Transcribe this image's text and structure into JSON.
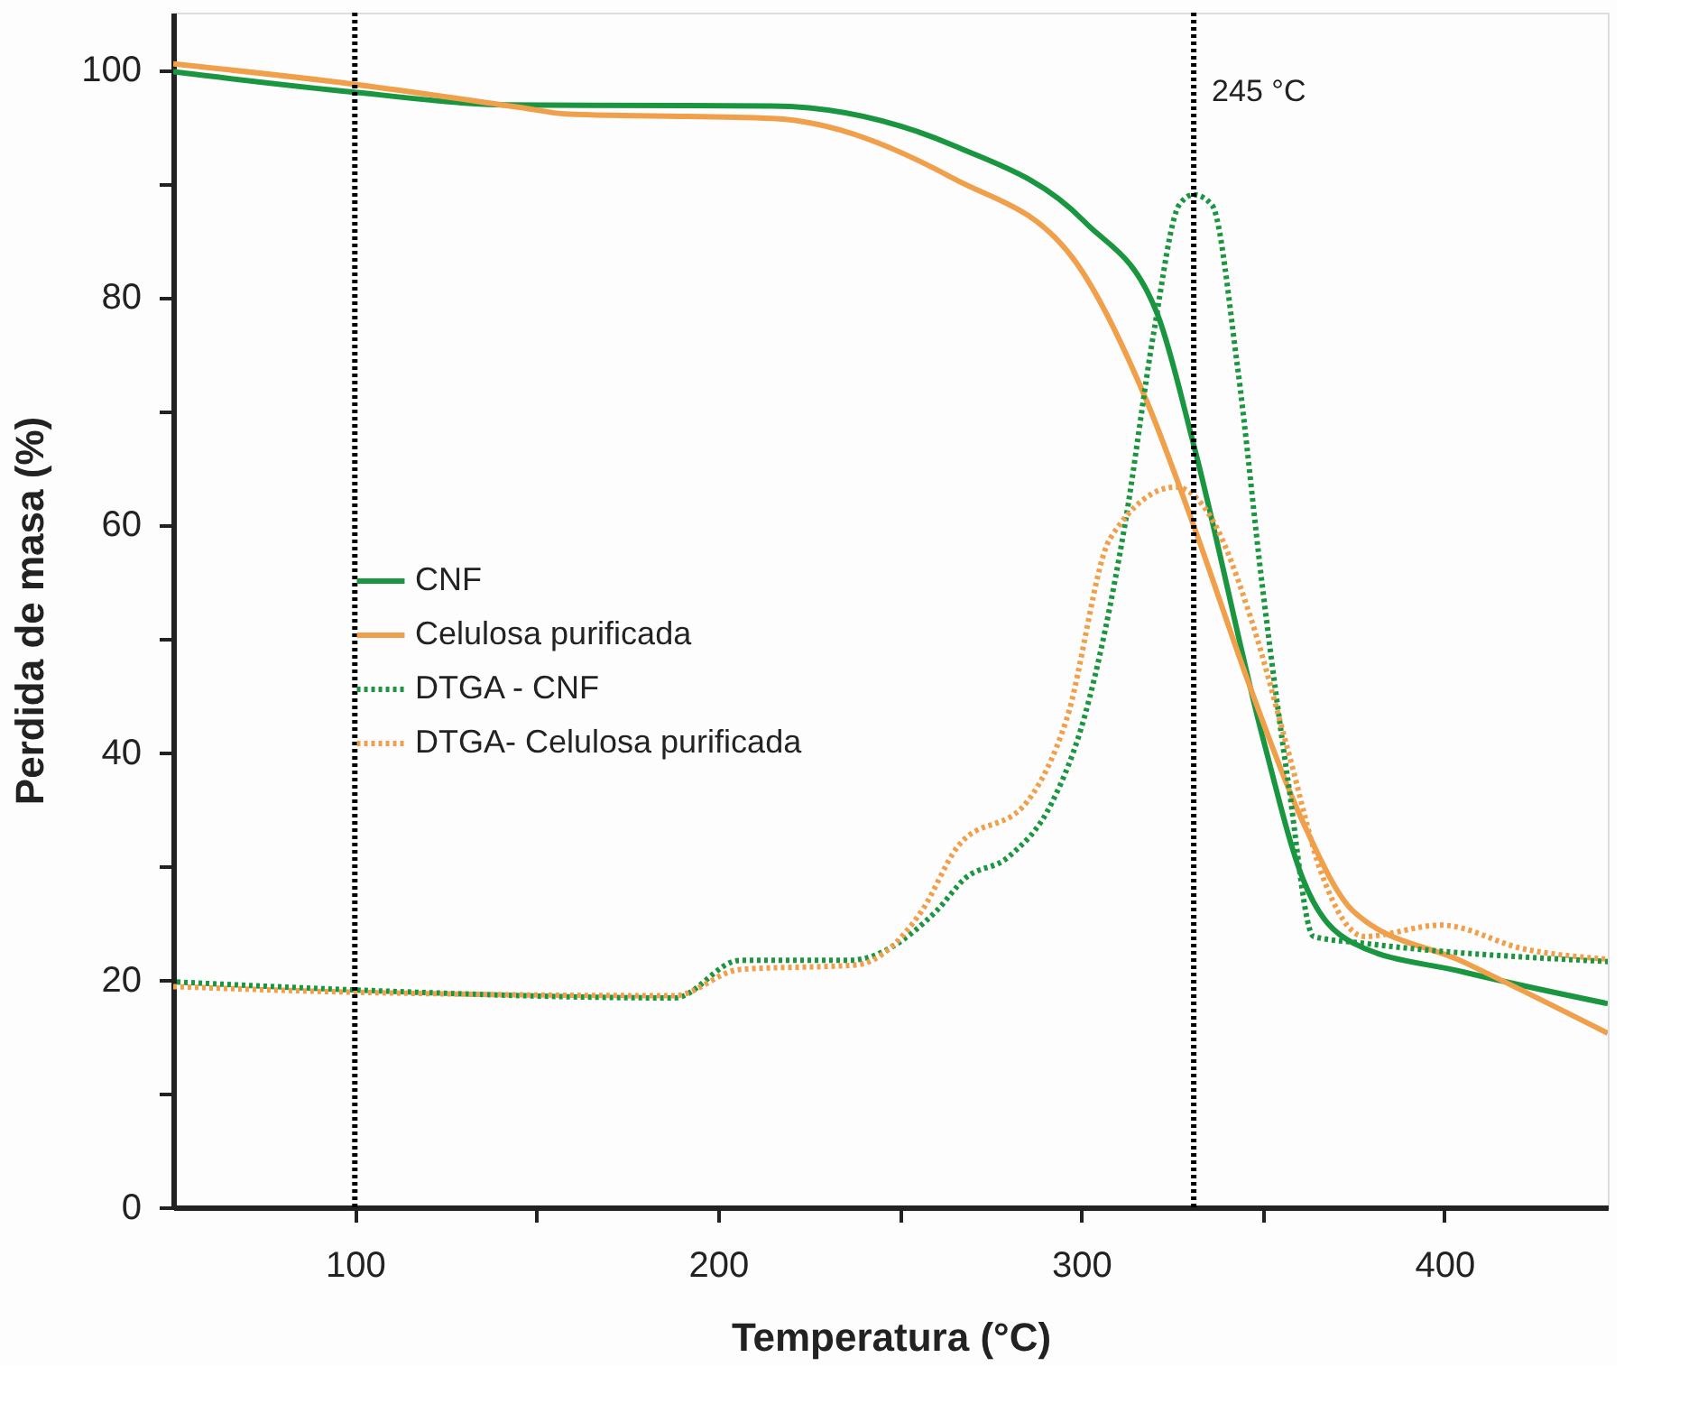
{
  "chart_data": {
    "type": "line",
    "xlabel": "Temperatura (°C)",
    "ylabel": "Perdida de masa (%)",
    "xlim": [
      50,
      445
    ],
    "ylim": [
      0,
      105
    ],
    "xticks": [
      100,
      {
        "value": 150,
        "label": null
      },
      200,
      {
        "value": 250,
        "label": null
      },
      300,
      {
        "value": 350,
        "label": null
      },
      400
    ],
    "yticks": [
      0,
      {
        "value": 10,
        "label": null
      },
      20,
      {
        "value": 30,
        "label": null
      },
      40,
      {
        "value": 50,
        "label": null
      },
      60,
      {
        "value": 70,
        "label": null
      },
      80,
      {
        "value": 90,
        "label": null
      },
      100
    ],
    "grid": false,
    "legend": "left",
    "series": [
      {
        "name": "CNF",
        "color": "#1a9641",
        "line_style": "solid",
        "x": [
          50,
          100,
          141,
          215,
          265,
          301,
          321,
          331,
          350,
          361,
          375,
          405,
          445
        ],
        "values": [
          99.8,
          98,
          96.9,
          96.8,
          93.3,
          86.6,
          78.5,
          67,
          41.3,
          28.9,
          23.2,
          20.7,
          17.9
        ]
      },
      {
        "name": "Celulosa purificada",
        "color": "#f0a04b",
        "line_style": "solid",
        "x": [
          50,
          100,
          147,
          158,
          215,
          265,
          298,
          318,
          331,
          347,
          361,
          375,
          405,
          445
        ],
        "values": [
          100.5,
          98.7,
          96.6,
          96.1,
          95.7,
          90.4,
          83.3,
          70.9,
          59.9,
          45.3,
          33.9,
          26,
          21.6,
          15.3
        ]
      },
      {
        "name": "DTGA - CNF",
        "color": "#1a9641",
        "line_style": "dotted",
        "x": [
          51,
          100,
          188,
          206,
          218,
          236,
          260,
          268,
          280,
          292,
          301,
          312,
          320,
          327,
          331,
          336,
          343,
          350,
          357,
          364,
          378,
          445
        ],
        "values": [
          19.8,
          19.1,
          18.4,
          21.7,
          21.7,
          21.7,
          26,
          28.9,
          30.8,
          35.6,
          43.2,
          59.9,
          76.9,
          88.1,
          89,
          88.1,
          74,
          54.3,
          37.4,
          23.8,
          23.2,
          21.6
        ]
      },
      {
        "name": "DTGA- Celulosa purificada",
        "color": "#f0a04b",
        "line_style": "dotted",
        "x": [
          50,
          100,
          188,
          206,
          238,
          256,
          266,
          285,
          296,
          308,
          326,
          336,
          347,
          357,
          366,
          378,
          399,
          422,
          445
        ],
        "values": [
          19.4,
          18.9,
          18.6,
          20.9,
          21.3,
          26,
          31.7,
          35.6,
          42.9,
          58.8,
          63.3,
          60.5,
          51.5,
          40.1,
          29.5,
          23.8,
          24.8,
          22.7,
          21.8
        ]
      }
    ],
    "ref_lines": [
      {
        "axis": "x",
        "value": 100,
        "label": null,
        "color": "#000000",
        "line_style": "dotted"
      },
      {
        "axis": "x",
        "value": 331,
        "label": "245 °C",
        "color": "#000000",
        "line_style": "dotted"
      }
    ]
  }
}
